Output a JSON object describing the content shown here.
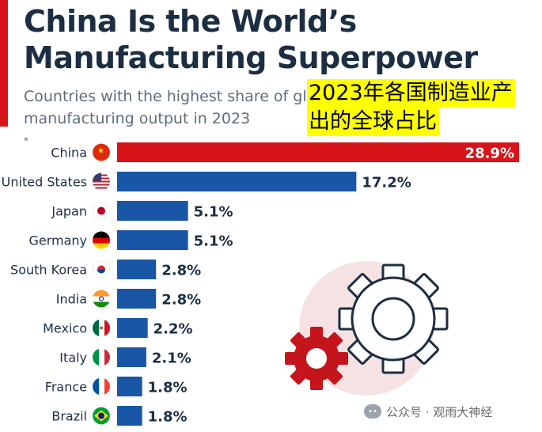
{
  "title_lines": [
    "China Is the World’s",
    "Manufacturing Superpower"
  ],
  "subtitle_lines": [
    "Countries with the highest share of global",
    "manufacturing output in 2023"
  ],
  "subtitle_mark": "*",
  "cn_overlay_lines": [
    "2023年各国制造业产",
    "出的全球占比"
  ],
  "watermark": {
    "icon": "wechat-icon",
    "text": "公众号 · 观雨大神经"
  },
  "colors": {
    "highlight": "#d7141a",
    "bar": "#1957a6",
    "title": "#1c2e42",
    "gear_dark": "#1c2e42",
    "gear_red": "#c4151c",
    "overlay_bg": "#ffff00"
  },
  "chart_data": {
    "type": "bar",
    "orientation": "horizontal",
    "title": "China Is the World’s Manufacturing Superpower",
    "subtitle": "Countries with the highest share of global manufacturing output in 2023*",
    "categories": [
      "China",
      "United States",
      "Japan",
      "Germany",
      "South Korea",
      "India",
      "Mexico",
      "Italy",
      "France",
      "Brazil"
    ],
    "values": [
      28.9,
      17.2,
      5.1,
      5.1,
      2.8,
      2.8,
      2.2,
      2.1,
      1.8,
      1.8
    ],
    "value_labels": [
      "28.9%",
      "17.2%",
      "5.1%",
      "5.1%",
      "2.8%",
      "2.8%",
      "2.2%",
      "2.1%",
      "1.8%",
      "1.8%"
    ],
    "unit": "%",
    "flags": [
      "flag-china-icon",
      "flag-us-icon",
      "flag-japan-icon",
      "flag-germany-icon",
      "flag-south-korea-icon",
      "flag-india-icon",
      "flag-mexico-icon",
      "flag-italy-icon",
      "flag-france-icon",
      "flag-brazil-icon"
    ],
    "highlight_index": 0,
    "xlim": [
      0,
      28.9
    ],
    "grid": false,
    "legend": "none"
  }
}
